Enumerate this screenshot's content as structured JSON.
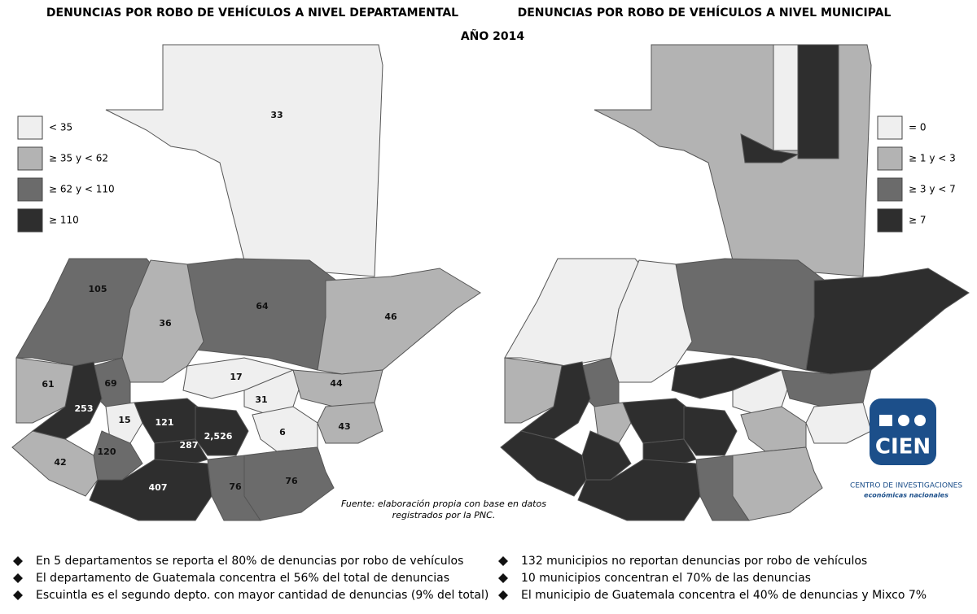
{
  "header": {
    "left_title": "DENUNCIAS POR ROBO DE VEHÍCULOS A NIVEL DEPARTAMENTAL",
    "right_title": "DENUNCIAS POR ROBO DE VEHÍCULOS A NIVEL MUNICIPAL",
    "year": "AÑO 2014"
  },
  "left_legend": [
    "< 35",
    "≥ 35 y < 62",
    "≥ 62 y < 110",
    "≥ 110"
  ],
  "right_legend": [
    "= 0",
    "≥ 1 y < 3",
    "≥ 3 y < 7",
    "≥ 7"
  ],
  "department_labels": [
    "33",
    "105",
    "64",
    "46",
    "36",
    "61",
    "69",
    "17",
    "31",
    "44",
    "253",
    "15",
    "121",
    "2,526",
    "287",
    "6",
    "43",
    "120",
    "42",
    "407",
    "76",
    "76"
  ],
  "source": [
    "Fuente: elaboración propia con base en datos",
    "registrados por la PNC."
  ],
  "logo": {
    "name": "CIEN",
    "line1": "CENTRO DE INVESTIGACIONES",
    "line2": "económicas nacionales"
  },
  "bullets_left": [
    "En 5 departamentos se reporta el 80% de denuncias por robo de vehículos",
    "El departamento de Guatemala concentra el 56% del total de denuncias",
    "Escuintla es el segundo depto. con mayor cantidad de denuncias (9% del total)"
  ],
  "bullets_right": [
    "132 municipios no reportan denuncias por robo de vehículos",
    "10 municipios concentran el 70% de las denuncias",
    "El municipio de Guatemala concentra el 40% de denuncias y Mixco 7%"
  ]
}
